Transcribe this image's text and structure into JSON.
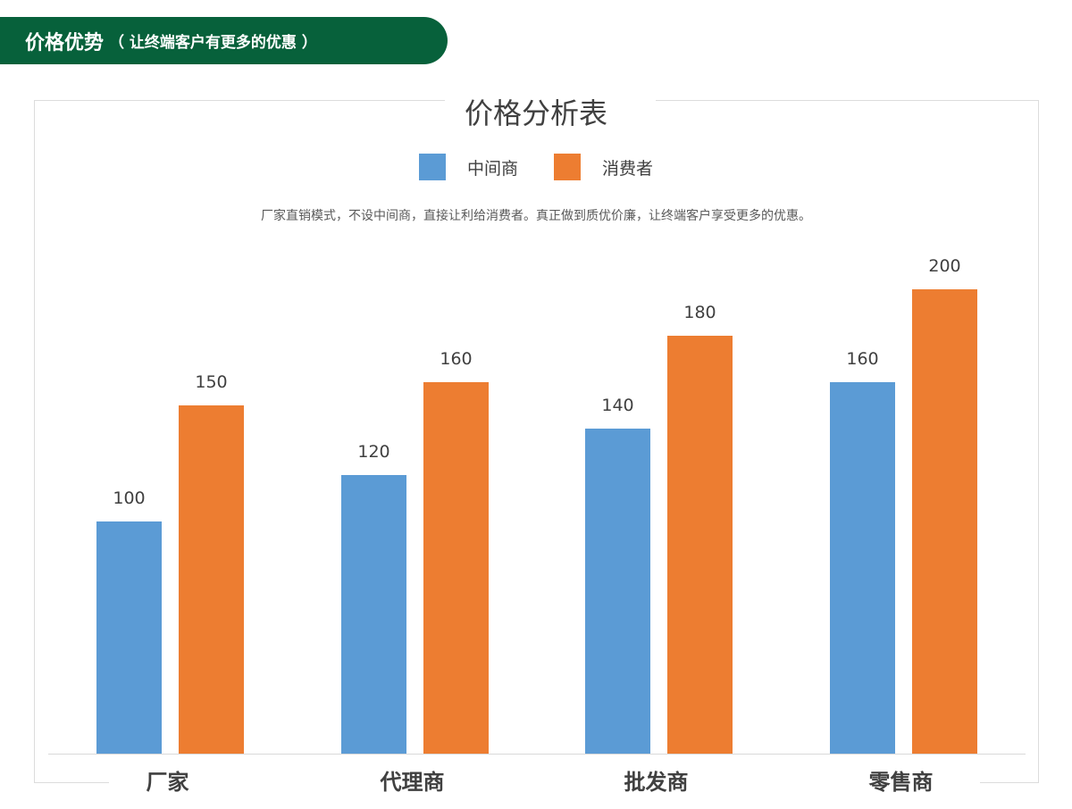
{
  "header": {
    "title": "价格优势",
    "subtitle": "（ 让终端客户有更多的优惠 ）"
  },
  "colors": {
    "header_bg": "#07613b",
    "series_blue": "#5b9bd5",
    "series_orange": "#ed7d31"
  },
  "note": "厂家直销模式，不设中间商，直接让利给消费者。真正做到质优价廉，让终端客户享受更多的优惠。",
  "chart_data": {
    "type": "bar",
    "title": "价格分析表",
    "categories": [
      "厂家",
      "代理商",
      "批发商",
      "零售商"
    ],
    "series": [
      {
        "name": "中间商",
        "color": "#5b9bd5",
        "values": [
          100,
          120,
          140,
          160
        ]
      },
      {
        "name": "消费者",
        "color": "#ed7d31",
        "values": [
          150,
          160,
          180,
          200
        ]
      }
    ],
    "ylim": [
      0,
      200
    ],
    "legend": "top-center",
    "grid": false
  }
}
